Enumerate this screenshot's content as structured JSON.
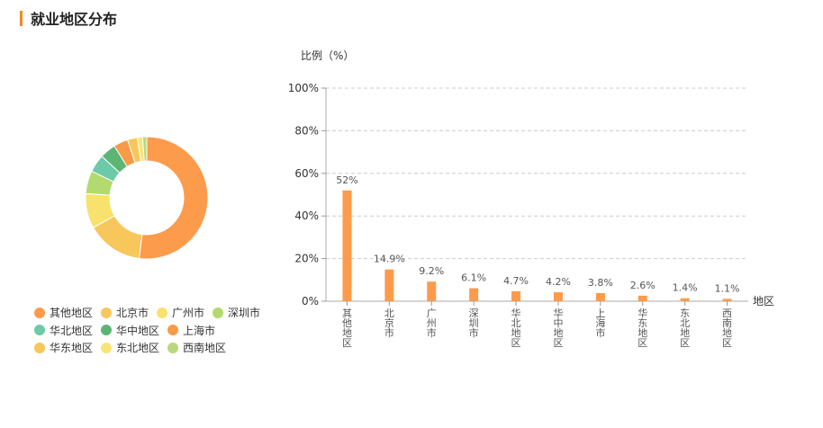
{
  "header": {
    "title": "就业地区分布"
  },
  "chart_data": [
    {
      "type": "pie",
      "variant": "donut",
      "categories": [
        "其他地区",
        "北京市",
        "广州市",
        "深圳市",
        "华北地区",
        "华中地区",
        "上海市",
        "华东地区",
        "东北地区",
        "西南地区"
      ],
      "values": [
        52,
        14.9,
        9.2,
        6.1,
        4.7,
        4.2,
        3.8,
        2.6,
        1.4,
        1.1
      ],
      "colors": [
        "#fc9b4c",
        "#f7c75c",
        "#f8e26e",
        "#b3da6e",
        "#6dcaa8",
        "#5cb575",
        "#f99a48",
        "#f6c75a",
        "#f7e577",
        "#b8d87d"
      ],
      "legend_position": "bottom-left"
    },
    {
      "type": "bar",
      "categories": [
        "其他地区",
        "北京市",
        "广州市",
        "深圳市",
        "华北地区",
        "华中地区",
        "上海市",
        "华东地区",
        "东北地区",
        "西南地区"
      ],
      "values": [
        52,
        14.9,
        9.2,
        6.1,
        4.7,
        4.2,
        3.8,
        2.6,
        1.4,
        1.1
      ],
      "value_labels": [
        "52%",
        "14.9%",
        "9.2%",
        "6.1%",
        "4.7%",
        "4.2%",
        "3.8%",
        "2.6%",
        "1.4%",
        "1.1%"
      ],
      "ylabel": "比例（%）",
      "xlabel": "地区",
      "ylim": [
        0,
        100
      ],
      "yticks": [
        "0%",
        "20%",
        "40%",
        "60%",
        "80%",
        "100%"
      ],
      "grid": true,
      "bar_color": "#fc9b4c"
    }
  ]
}
